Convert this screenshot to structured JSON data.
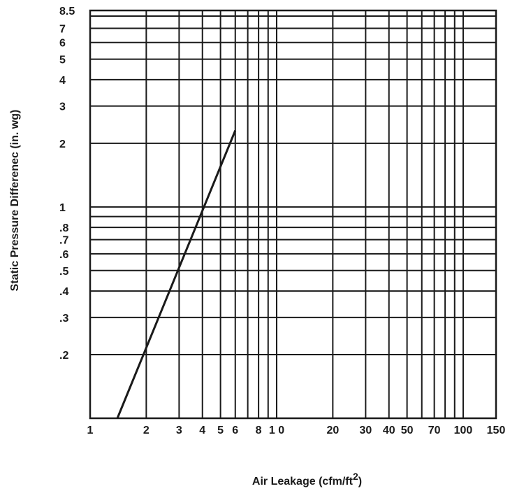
{
  "chart_data": {
    "type": "line",
    "title": "",
    "xlabel": "Air Leakage (cfm/ft",
    "xlabel_sup": "2",
    "xlabel_close": ")",
    "ylabel": "Static Pressure Differenec (in. wg)",
    "xscale": "log",
    "yscale": "log",
    "xlim": [
      1,
      150
    ],
    "ylim": [
      0.1,
      8.5
    ],
    "grid": true,
    "x_ticks": [
      {
        "value": 1,
        "label": "1"
      },
      {
        "value": 2,
        "label": "2"
      },
      {
        "value": 3,
        "label": "3"
      },
      {
        "value": 4,
        "label": "4"
      },
      {
        "value": 5,
        "label": "5"
      },
      {
        "value": 6,
        "label": "6"
      },
      {
        "value": 8,
        "label": "8"
      },
      {
        "value": 10,
        "label": "1 0"
      },
      {
        "value": 20,
        "label": "20"
      },
      {
        "value": 30,
        "label": "30"
      },
      {
        "value": 40,
        "label": "40"
      },
      {
        "value": 50,
        "label": "50"
      },
      {
        "value": 70,
        "label": "70"
      },
      {
        "value": 100,
        "label": "100"
      },
      {
        "value": 150,
        "label": "150"
      }
    ],
    "x_gridlines": [
      2,
      3,
      4,
      5,
      6,
      7,
      8,
      9,
      10,
      20,
      30,
      40,
      50,
      60,
      70,
      80,
      90,
      100
    ],
    "y_ticks": [
      {
        "value": 8.5,
        "label": "8.5"
      },
      {
        "value": 7,
        "label": "7"
      },
      {
        "value": 6,
        "label": "6"
      },
      {
        "value": 5,
        "label": "5"
      },
      {
        "value": 4,
        "label": "4"
      },
      {
        "value": 3,
        "label": "3"
      },
      {
        "value": 2,
        "label": "2"
      },
      {
        "value": 1,
        "label": "1"
      },
      {
        "value": 0.8,
        "label": ".8"
      },
      {
        "value": 0.7,
        "label": ".7"
      },
      {
        "value": 0.6,
        "label": ".6"
      },
      {
        "value": 0.5,
        "label": ".5"
      },
      {
        "value": 0.4,
        "label": ".4"
      },
      {
        "value": 0.3,
        "label": ".3"
      },
      {
        "value": 0.2,
        "label": ".2"
      }
    ],
    "y_gridlines": [
      0.2,
      0.3,
      0.4,
      0.5,
      0.6,
      0.7,
      0.8,
      0.9,
      1,
      2,
      3,
      4,
      5,
      6,
      7,
      8
    ],
    "series": [
      {
        "x": [
          1.4,
          6.0
        ],
        "y": [
          0.1,
          2.3
        ]
      }
    ]
  }
}
